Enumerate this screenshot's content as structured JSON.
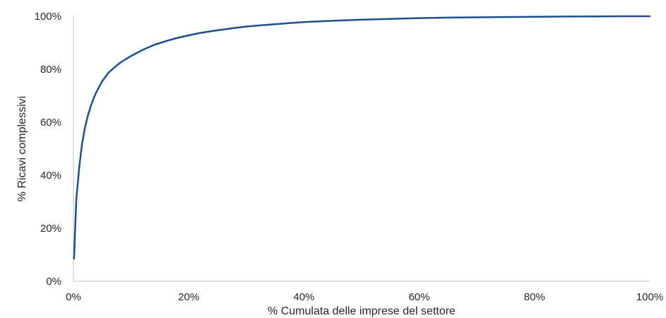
{
  "chart_data": {
    "type": "line",
    "title": "",
    "xlabel": "% Cumulata delle imprese del settore",
    "ylabel": "% Ricavi complessivi",
    "xlim": [
      0,
      100
    ],
    "ylim": [
      0,
      100
    ],
    "x_ticks": [
      "0%",
      "20%",
      "40%",
      "60%",
      "80%",
      "100%"
    ],
    "y_ticks": [
      "0%",
      "20%",
      "40%",
      "60%",
      "80%",
      "100%"
    ],
    "grid": false,
    "legend": "none",
    "colors": {
      "series": "#1f4e8c",
      "axis": "#bfbfbf"
    },
    "series": [
      {
        "x": [
          0.1,
          0.3,
          0.5,
          0.8,
          1.0,
          1.5,
          2.0,
          2.5,
          3.0,
          3.5,
          4.0,
          5.0,
          6.0,
          7.0,
          8.0,
          9.0,
          10.0,
          12.0,
          14.0,
          16.0,
          18.0,
          20.0,
          22.0,
          24.0,
          26.0,
          28.0,
          30.0,
          32.0,
          35.0,
          38.0,
          40.0,
          45.0,
          50.0,
          55.0,
          60.0,
          65.0,
          70.0,
          75.0,
          80.0,
          85.0,
          90.0,
          95.0,
          100.0
        ],
        "y": [
          8.5,
          20.0,
          31.0,
          38.0,
          43.0,
          52.0,
          58.0,
          62.5,
          66.0,
          69.0,
          71.5,
          75.5,
          78.5,
          80.5,
          82.3,
          83.7,
          85.0,
          87.3,
          89.2,
          90.6,
          91.8,
          92.8,
          93.7,
          94.4,
          95.0,
          95.6,
          96.1,
          96.5,
          97.0,
          97.5,
          97.8,
          98.3,
          98.7,
          99.0,
          99.3,
          99.5,
          99.6,
          99.7,
          99.8,
          99.9,
          99.95,
          100.0,
          100.0
        ]
      }
    ]
  }
}
